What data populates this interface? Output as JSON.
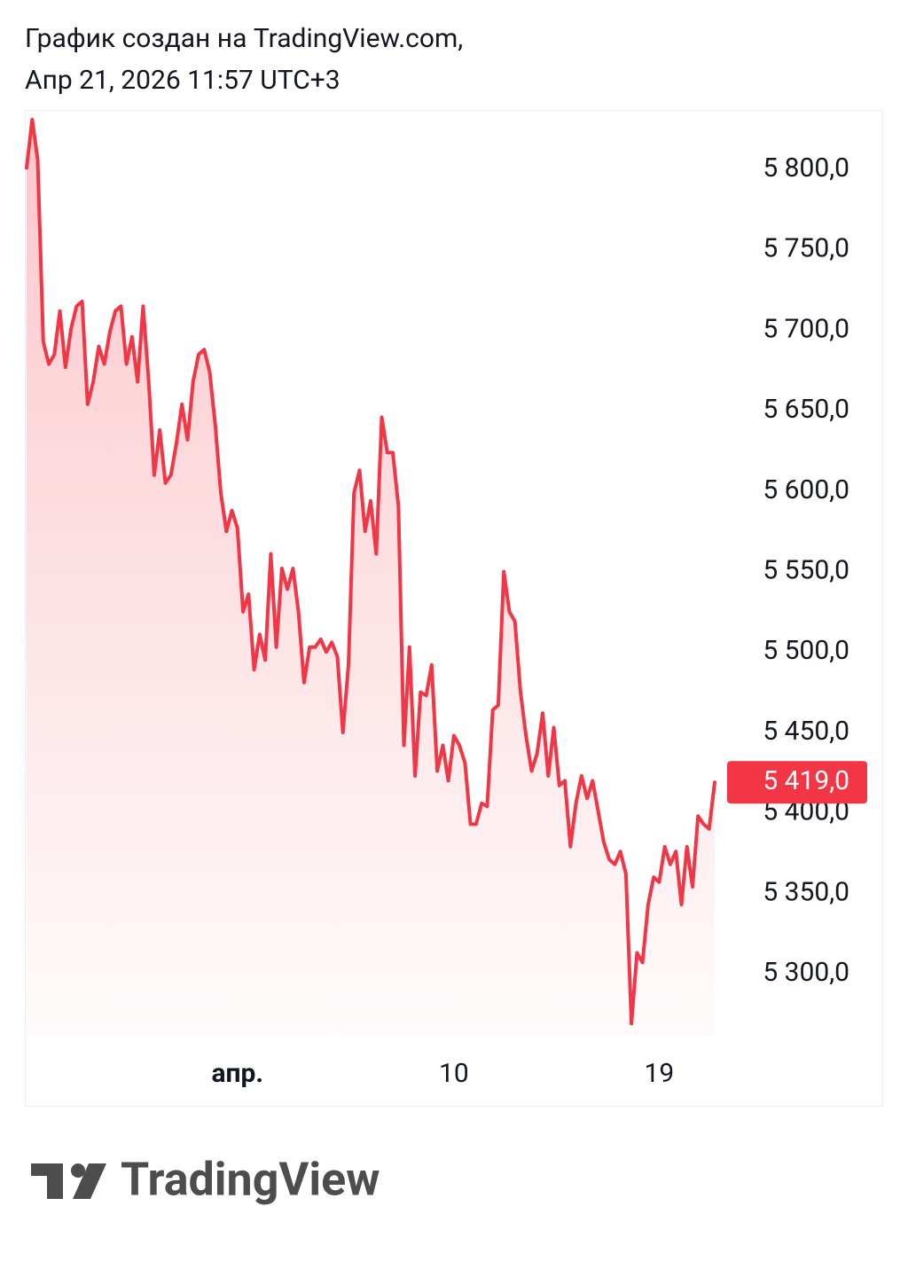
{
  "chart_data": {
    "type": "area",
    "title": "График создан на TradingView.com,",
    "subtitle": "Апр 21, 2026 11:57 UTC+3",
    "categories": [
      null,
      null,
      null,
      null,
      null,
      null,
      null,
      null,
      null,
      null,
      null,
      null,
      null,
      null,
      null,
      null,
      null,
      null,
      null,
      null,
      null,
      null,
      null,
      null,
      null,
      null,
      null,
      null,
      null,
      null,
      null,
      null,
      null,
      null,
      null,
      null,
      null,
      null,
      "апр.",
      null,
      null,
      null,
      null,
      null,
      null,
      null,
      null,
      null,
      null,
      null,
      null,
      null,
      null,
      null,
      null,
      null,
      null,
      null,
      null,
      null,
      null,
      null,
      null,
      null,
      null,
      null,
      null,
      null,
      null,
      null,
      null,
      null,
      null,
      null,
      null,
      null,
      null,
      "10",
      null,
      null,
      null,
      null,
      null,
      null,
      null,
      null,
      null,
      null,
      null,
      null,
      null,
      null,
      null,
      null,
      null,
      null,
      null,
      null,
      null,
      null,
      null,
      null,
      null,
      null,
      null,
      null,
      null,
      null,
      null,
      null,
      null,
      null,
      null,
      null,
      "19",
      null,
      null,
      null,
      null,
      null,
      null,
      null,
      null,
      null,
      null
    ],
    "series": [
      {
        "color": "#f23645",
        "values": [
          5801,
          5831,
          5806,
          5693,
          5679,
          5685,
          5712,
          5677,
          5701,
          5715,
          5718,
          5654,
          5668,
          5690,
          5679,
          5699,
          5712,
          5715,
          5679,
          5696,
          5668,
          5715,
          5668,
          5610,
          5638,
          5605,
          5610,
          5630,
          5654,
          5632,
          5668,
          5685,
          5688,
          5674,
          5641,
          5599,
          5575,
          5588,
          5577,
          5525,
          5536,
          5489,
          5511,
          5495,
          5561,
          5503,
          5552,
          5539,
          5552,
          5525,
          5481,
          5503,
          5503,
          5508,
          5500,
          5506,
          5497,
          5450,
          5492,
          5599,
          5613,
          5575,
          5594,
          5561,
          5646,
          5624,
          5624,
          5591,
          5442,
          5503,
          5423,
          5475,
          5473,
          5492,
          5426,
          5442,
          5420,
          5448,
          5442,
          5431,
          5393,
          5393,
          5406,
          5404,
          5464,
          5467,
          5550,
          5525,
          5519,
          5475,
          5448,
          5426,
          5437,
          5462,
          5423,
          5453,
          5417,
          5420,
          5379,
          5406,
          5423,
          5409,
          5420,
          5401,
          5382,
          5371,
          5368,
          5376,
          5362,
          5269,
          5313,
          5307,
          5343,
          5360,
          5357,
          5379,
          5368,
          5376,
          5343,
          5379,
          5354,
          5398,
          5393,
          5390,
          5419
        ]
      }
    ],
    "ylim": [
      5262,
      5837
    ],
    "yticks": [
      {
        "value": 5800,
        "label": "5 800,0"
      },
      {
        "value": 5750,
        "label": "5 750,0"
      },
      {
        "value": 5700,
        "label": "5 700,0"
      },
      {
        "value": 5650,
        "label": "5 650,0"
      },
      {
        "value": 5600,
        "label": "5 600,0"
      },
      {
        "value": 5550,
        "label": "5 550,0"
      },
      {
        "value": 5500,
        "label": "5 500,0"
      },
      {
        "value": 5450,
        "label": "5 450,0"
      },
      {
        "value": 5400,
        "label": "5 400,0"
      },
      {
        "value": 5350,
        "label": "5 350,0"
      },
      {
        "value": 5300,
        "label": "5 300,0"
      }
    ],
    "last_price": {
      "value": 5419,
      "label": "5 419,0"
    },
    "grid": false
  },
  "logo_text": "TradingView"
}
